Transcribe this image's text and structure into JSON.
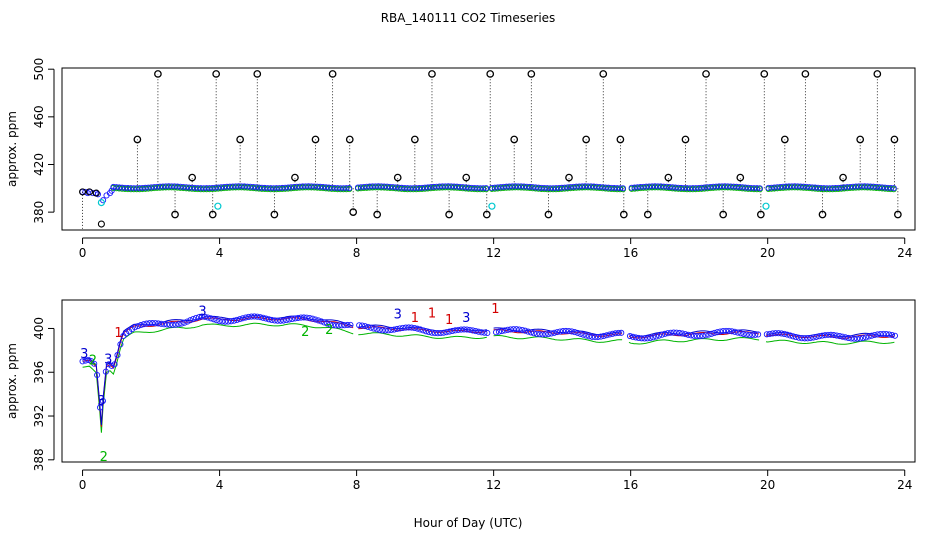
{
  "title": "RBA_140111  CO2 Timeseries",
  "xlabel": "Hour of Day (UTC)",
  "chart_data": [
    {
      "type": "scatter",
      "name": "top-panel",
      "ylabel": "approx. ppm",
      "xlim": [
        -0.6,
        24.3
      ],
      "ylim": [
        365,
        501
      ],
      "xticks": [
        0,
        4,
        8,
        12,
        16,
        20,
        24
      ],
      "yticks": [
        380,
        420,
        460,
        500
      ],
      "baseline": 400,
      "spike_times": [
        1.6,
        2.2,
        2.7,
        3.2,
        3.8,
        3.9,
        4.6,
        5.1,
        5.6,
        6.2,
        6.8,
        7.3,
        7.8,
        7.9,
        8.6,
        9.2,
        9.7,
        10.2,
        10.7,
        11.2,
        11.8,
        11.9,
        12.6,
        13.1,
        13.6,
        14.2,
        14.7,
        15.2,
        15.7,
        15.8,
        16.5,
        17.1,
        17.6,
        18.2,
        18.7,
        19.2,
        19.8,
        19.9,
        20.5,
        21.1,
        21.6,
        22.2,
        22.7,
        23.2,
        23.7,
        23.8
      ],
      "spike_values": [
        441,
        496,
        378,
        409,
        378,
        496,
        441,
        496,
        378,
        409,
        441,
        496,
        441,
        380,
        378,
        409,
        441,
        496,
        378,
        409,
        378,
        496,
        441,
        496,
        378,
        409,
        441,
        496,
        441,
        378,
        378,
        409,
        441,
        496,
        378,
        409,
        378,
        496,
        441,
        496,
        378,
        409,
        441,
        496,
        441,
        378
      ],
      "cyan_points": [
        [
          3.95,
          385
        ],
        [
          11.95,
          385
        ],
        [
          19.95,
          385
        ],
        [
          0.55,
          388
        ]
      ],
      "low_points": [
        [
          0.55,
          370
        ],
        [
          0.0,
          397
        ],
        [
          0.2,
          397
        ],
        [
          0.4,
          396
        ]
      ]
    },
    {
      "type": "line",
      "name": "bottom-panel",
      "ylabel": "approx. ppm",
      "xlim": [
        -0.6,
        24.3
      ],
      "ylim": [
        387.8,
        402.6
      ],
      "xticks": [
        0,
        4,
        8,
        12,
        16,
        20,
        24
      ],
      "yticks": [
        388,
        392,
        396,
        400
      ],
      "series": [
        {
          "name": "1",
          "color": "#d40000"
        },
        {
          "name": "2",
          "color": "#00b400"
        },
        {
          "name": "3",
          "color": "#0000d0"
        }
      ],
      "profile_x": [
        0.0,
        0.2,
        0.4,
        0.5,
        0.55,
        0.6,
        0.7,
        0.8,
        0.9,
        1.0,
        1.1,
        1.2,
        1.5,
        2.0,
        2.5,
        3.0,
        3.5,
        4.0,
        5.0,
        6.0,
        7.0,
        7.5,
        8.0,
        9.0,
        10.0,
        11.0,
        12.0,
        13.0,
        14.0,
        15.0,
        15.8,
        16.0,
        17.0,
        18.0,
        19.0,
        19.8,
        20.0,
        21.0,
        22.0,
        23.0,
        23.8
      ],
      "profile_y": [
        397.0,
        397.0,
        396.4,
        393.0,
        391.0,
        393.5,
        396.6,
        396.8,
        396.5,
        397.5,
        398.7,
        399.6,
        400.1,
        400.3,
        400.5,
        400.6,
        400.9,
        400.8,
        400.9,
        400.9,
        400.7,
        400.4,
        400.1,
        400.0,
        399.8,
        399.7,
        399.8,
        399.7,
        399.6,
        399.4,
        399.4,
        399.2,
        399.4,
        399.5,
        399.6,
        399.6,
        399.4,
        399.3,
        399.2,
        399.3,
        399.3
      ],
      "green_offset": -0.55,
      "labels": [
        {
          "text": "3",
          "x": 0.05,
          "y": 397.3,
          "color": "#0000d0"
        },
        {
          "text": "2",
          "x": 0.3,
          "y": 396.7,
          "color": "#00b400"
        },
        {
          "text": "3",
          "x": 0.55,
          "y": 393.0,
          "color": "#0000d0"
        },
        {
          "text": "2",
          "x": 0.62,
          "y": 387.9,
          "color": "#00b400"
        },
        {
          "text": "3",
          "x": 0.75,
          "y": 396.8,
          "color": "#0000d0"
        },
        {
          "text": "1",
          "x": 1.05,
          "y": 399.2,
          "color": "#d40000"
        },
        {
          "text": "3",
          "x": 9.2,
          "y": 400.9,
          "color": "#0000d0"
        },
        {
          "text": "1",
          "x": 9.7,
          "y": 400.6,
          "color": "#d40000"
        },
        {
          "text": "1",
          "x": 10.2,
          "y": 401.0,
          "color": "#d40000"
        },
        {
          "text": "1",
          "x": 10.7,
          "y": 400.4,
          "color": "#d40000"
        },
        {
          "text": "3",
          "x": 11.2,
          "y": 400.6,
          "color": "#0000d0"
        },
        {
          "text": "1",
          "x": 12.05,
          "y": 401.4,
          "color": "#d40000"
        },
        {
          "text": "2",
          "x": 6.5,
          "y": 399.3,
          "color": "#00b400"
        },
        {
          "text": "2",
          "x": 7.2,
          "y": 399.5,
          "color": "#00b400"
        },
        {
          "text": "3",
          "x": 3.5,
          "y": 401.2,
          "color": "#0000d0"
        }
      ]
    }
  ]
}
